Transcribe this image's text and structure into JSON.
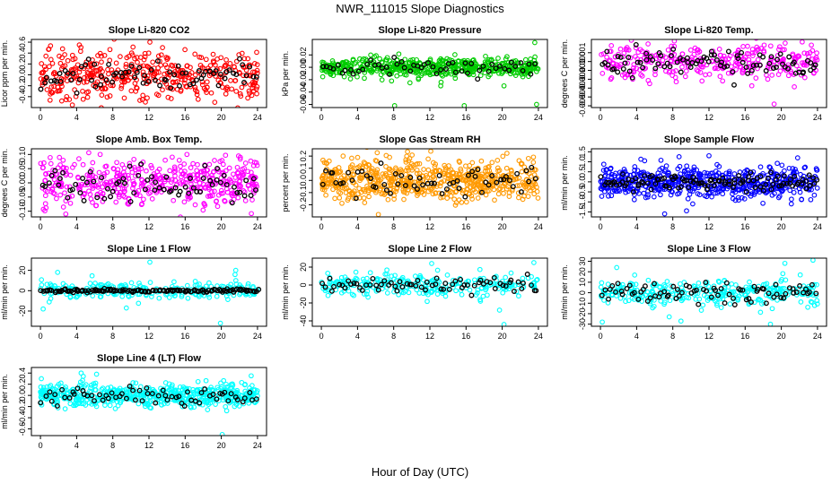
{
  "figure": {
    "title": "NWR_111015  Slope Diagnostics",
    "xlabel": "Hour of Day (UTC)"
  },
  "colors": {
    "black_series": "#000000",
    "frame": "#000000"
  },
  "chart_data": [
    {
      "type": "scatter",
      "title": "Slope Li-820 CO2",
      "ylabel": "Licor ppm per min.",
      "color": "#ff0000",
      "xlim": [
        -1,
        25
      ],
      "ylim": [
        -0.6,
        0.65
      ],
      "xticks": [
        "0",
        "4",
        "8",
        "12",
        "16",
        "20",
        "24"
      ],
      "yticks": [
        -0.4,
        -0.2,
        0.0,
        0.2,
        0.4,
        0.6
      ],
      "ytick_labels": [
        "-0.4",
        "-0.2",
        "0.0",
        "0.2",
        "0.4",
        "0.6"
      ],
      "spread": 0.22,
      "outliers": [
        [
          4.3,
          0.55
        ],
        [
          11.6,
          -0.5
        ],
        [
          12.1,
          0.6
        ],
        [
          2.9,
          -0.4
        ],
        [
          20.5,
          -0.35
        ],
        [
          13.5,
          0.5
        ]
      ],
      "n_color": 420,
      "n_black": 75,
      "black_spread": 0.12
    },
    {
      "type": "scatter",
      "title": "Slope Li-820 Pressure",
      "ylabel": "kPa per min.",
      "color": "#00cc00",
      "xlim": [
        -1,
        25
      ],
      "ylim": [
        -0.065,
        0.045
      ],
      "xticks": [
        "0",
        "4",
        "8",
        "12",
        "16",
        "20",
        "24"
      ],
      "yticks": [
        -0.06,
        -0.04,
        -0.02,
        0.0,
        0.02
      ],
      "ytick_labels": [
        "-0.06",
        "-0.04",
        "-0.02",
        "0.00",
        "0.02"
      ],
      "spread": 0.008,
      "outliers": [
        [
          23.6,
          0.04
        ],
        [
          8.1,
          -0.062
        ],
        [
          15.8,
          -0.062
        ],
        [
          23.8,
          -0.06
        ],
        [
          13.2,
          -0.03
        ],
        [
          9.8,
          -0.025
        ],
        [
          20.2,
          -0.03
        ]
      ],
      "n_color": 520,
      "n_black": 55,
      "black_spread": 0.006
    },
    {
      "type": "scatter",
      "title": "Slope Li-820 Temp.",
      "ylabel": "degrees C per min.",
      "color": "#ff00ff",
      "xlim": [
        -1,
        25
      ],
      "ylim": [
        -0.0052,
        0.0025
      ],
      "xticks": [
        "0",
        "4",
        "8",
        "12",
        "16",
        "20",
        "24"
      ],
      "yticks": [
        -0.005,
        -0.004,
        -0.003,
        -0.002,
        -0.001,
        0.0,
        0.001
      ],
      "ytick_labels": [
        "-0.005",
        "-0.004",
        "-0.003",
        "-0.002",
        "-0.001",
        "0.000",
        "0.001"
      ],
      "spread": 0.001,
      "outliers": [
        [
          19.2,
          -0.0048
        ],
        [
          18.5,
          -0.002
        ],
        [
          8.3,
          -0.0018
        ],
        [
          11.6,
          -0.0015
        ],
        [
          1.2,
          0.0018
        ]
      ],
      "n_color": 320,
      "n_black": 90,
      "black_spread": 0.0008
    },
    {
      "type": "scatter",
      "title": "Slope Amb. Box Temp.",
      "ylabel": "degrees C per min.",
      "color": "#ff00ff",
      "xlim": [
        -1,
        25
      ],
      "ylim": [
        -0.12,
        0.12
      ],
      "xticks": [
        "0",
        "4",
        "8",
        "12",
        "16",
        "20",
        "24"
      ],
      "yticks": [
        -0.1,
        -0.05,
        0.0,
        0.05,
        0.1
      ],
      "ytick_labels": [
        "-0.10",
        "-0.05",
        "0.00",
        "0.05",
        "0.10"
      ],
      "spread": 0.04,
      "outliers": [
        [
          2.8,
          -0.11
        ],
        [
          16.2,
          0.1
        ],
        [
          22.1,
          0.09
        ],
        [
          6.6,
          0.1
        ]
      ],
      "n_color": 460,
      "n_black": 70,
      "black_spread": 0.03
    },
    {
      "type": "scatter",
      "title": "Slope Gas Stream RH",
      "ylabel": "percent per min.",
      "color": "#ff9900",
      "xlim": [
        -1,
        25
      ],
      "ylim": [
        -0.3,
        0.26
      ],
      "xticks": [
        "0",
        "4",
        "8",
        "12",
        "16",
        "20",
        "24"
      ],
      "yticks": [
        -0.2,
        -0.1,
        0.0,
        0.1,
        0.2
      ],
      "ytick_labels": [
        "-0.2",
        "-0.1",
        "0.0",
        "0.1",
        "0.2"
      ],
      "spread": 0.085,
      "outliers": [
        [
          6.3,
          -0.28
        ],
        [
          12.1,
          0.24
        ],
        [
          2.4,
          0.2
        ]
      ],
      "n_color": 620,
      "n_black": 60,
      "black_spread": 0.06
    },
    {
      "type": "scatter",
      "title": "Slope Sample Flow",
      "ylabel": "ml/min per min.",
      "color": "#0000ff",
      "xlim": [
        -1,
        25
      ],
      "ylim": [
        -1.75,
        1.65
      ],
      "xticks": [
        "0",
        "4",
        "8",
        "12",
        "16",
        "20",
        "24"
      ],
      "yticks": [
        -1.5,
        -1.0,
        -0.5,
        0.0,
        0.5,
        1.0,
        1.5
      ],
      "ytick_labels": [
        "-1.5",
        "-1.0",
        "-0.5",
        "0.0",
        "0.5",
        "1.0",
        "1.5"
      ],
      "spread": 0.4,
      "outliers": [
        [
          7.1,
          -1.6
        ],
        [
          12.0,
          1.3
        ],
        [
          8.7,
          1.25
        ],
        [
          21.8,
          1.2
        ],
        [
          10.2,
          -1.1
        ]
      ],
      "n_color": 560,
      "n_black": 110,
      "black_spread": 0.2
    },
    {
      "type": "scatter",
      "title": "Slope Line 1 Flow",
      "ylabel": "ml/min per min.",
      "color": "#00ffff",
      "xlim": [
        -1,
        25
      ],
      "ylim": [
        -35,
        32
      ],
      "xticks": [
        "0",
        "4",
        "8",
        "12",
        "16",
        "20",
        "24"
      ],
      "yticks": [
        -20,
        0,
        20
      ],
      "ytick_labels": [
        "-20",
        "0",
        "20"
      ],
      "spread": 4,
      "outliers": [
        [
          12.1,
          28
        ],
        [
          19.9,
          -32
        ],
        [
          1.9,
          18
        ],
        [
          21.6,
          20
        ],
        [
          0.3,
          -18
        ],
        [
          9.5,
          -17
        ]
      ],
      "n_color": 240,
      "n_black": 140,
      "black_spread": 0.8
    },
    {
      "type": "scatter",
      "title": "Slope Line 2 Flow",
      "ylabel": "ml/min per min.",
      "color": "#00ffff",
      "xlim": [
        -1,
        25
      ],
      "ylim": [
        -46,
        30
      ],
      "xticks": [
        "0",
        "4",
        "8",
        "12",
        "16",
        "20",
        "24"
      ],
      "yticks": [
        -40,
        -20,
        0,
        20
      ],
      "ytick_labels": [
        "-40",
        "-20",
        "0",
        "20"
      ],
      "spread": 6,
      "outliers": [
        [
          20.2,
          -44
        ],
        [
          12.2,
          24
        ],
        [
          23.5,
          25
        ],
        [
          19.7,
          -28
        ],
        [
          17.6,
          -18
        ]
      ],
      "n_color": 260,
      "n_black": 70,
      "black_spread": 4
    },
    {
      "type": "scatter",
      "title": "Slope Line 3 Flow",
      "ylabel": "ml/min per min.",
      "color": "#00ffff",
      "xlim": [
        -1,
        25
      ],
      "ylim": [
        -32,
        33
      ],
      "xticks": [
        "0",
        "4",
        "8",
        "12",
        "16",
        "20",
        "24"
      ],
      "yticks": [
        -30,
        -20,
        -10,
        0,
        10,
        20,
        30
      ],
      "ytick_labels": [
        "-30",
        "-20",
        "-10",
        "0",
        "10",
        "20",
        "30"
      ],
      "spread": 6,
      "outliers": [
        [
          23.5,
          31
        ],
        [
          18.8,
          -30
        ],
        [
          0.2,
          -28
        ],
        [
          1.8,
          24
        ],
        [
          8.9,
          -27
        ],
        [
          7.6,
          -23
        ],
        [
          20.4,
          28
        ]
      ],
      "n_color": 300,
      "n_black": 80,
      "black_spread": 6
    },
    {
      "type": "scatter",
      "title": "Slope Line 4 (LT) Flow",
      "ylabel": "ml/min per min.",
      "color": "#00ffff",
      "xlim": [
        -1,
        25
      ],
      "ylim": [
        -0.72,
        0.5
      ],
      "xticks": [
        "0",
        "4",
        "8",
        "12",
        "16",
        "20",
        "24"
      ],
      "yticks": [
        -0.6,
        -0.4,
        -0.2,
        0.0,
        0.2,
        0.4
      ],
      "ytick_labels": [
        "-0.6",
        "-0.4",
        "-0.2",
        "0.0",
        "0.2",
        "0.4"
      ],
      "spread": 0.1,
      "outliers": [
        [
          20.1,
          -0.7
        ],
        [
          6.2,
          0.38
        ],
        [
          4.5,
          0.4
        ],
        [
          23.3,
          0.35
        ],
        [
          0.1,
          0.3
        ]
      ],
      "n_color": 560,
      "n_black": 65,
      "black_spread": 0.09
    }
  ]
}
